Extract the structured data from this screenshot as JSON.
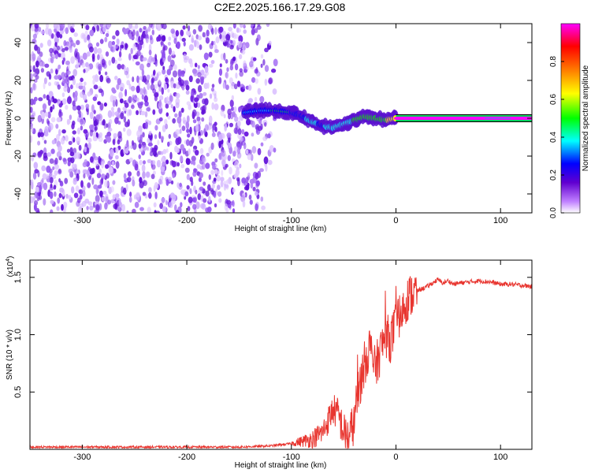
{
  "title": "C2E2.2025.166.17.29.G08",
  "chart_data": [
    {
      "type": "heatmap",
      "name": "spectrogram",
      "xlabel": "Height of straight line (km)",
      "ylabel": "Frequency (Hz)",
      "xlim": [
        -350,
        130
      ],
      "ylim": [
        -50,
        50
      ],
      "xticks": [
        -300,
        -200,
        -100,
        0,
        100
      ],
      "xtick_labels": [
        "-300",
        "-200",
        "-100",
        "0",
        "100"
      ],
      "yticks": [
        -40,
        -20,
        0,
        20,
        40
      ],
      "ytick_labels": [
        "-40",
        "-20",
        "0",
        "20",
        "40"
      ],
      "colorbar": {
        "label": "Normalized spectral amplitude",
        "range": [
          0,
          1
        ],
        "ticks": [
          0.0,
          0.2,
          0.4,
          0.6,
          0.8
        ],
        "tick_labels": [
          "0.0",
          "0.2",
          "0.4",
          "0.6",
          "0.8"
        ],
        "colors": [
          "#ffffff",
          "#c080ff",
          "#6000d0",
          "#0000ff",
          "#00ffff",
          "#00ff00",
          "#ffff00",
          "#ff8000",
          "#ff0000",
          "#ff00ff"
        ]
      },
      "regions": [
        {
          "kind": "noise",
          "x_range": [
            -350,
            -115
          ],
          "description_amplitude": 0.1
        },
        {
          "kind": "signal",
          "x": [
            -145,
            -130,
            -115,
            -100,
            -90,
            -80,
            -70,
            -60,
            -50,
            -40,
            -30,
            -20,
            -10,
            0
          ],
          "freq": [
            3,
            4,
            4,
            3,
            1,
            -2,
            -4,
            -5,
            -3,
            -1,
            1,
            0,
            -1,
            0
          ],
          "amplitude": [
            0.3,
            0.35,
            0.4,
            0.4,
            0.45,
            0.5,
            0.45,
            0.55,
            0.6,
            0.7,
            0.8,
            0.85,
            0.9,
            0.95
          ]
        },
        {
          "kind": "line",
          "x_range": [
            0,
            130
          ],
          "freq": 0,
          "amplitude": 0.95
        }
      ]
    },
    {
      "type": "line",
      "name": "snr",
      "xlabel": "Height of straight line (km)",
      "ylabel": "SNR (10 * v/v)",
      "scale_label": "(x10",
      "scale_exp": "4",
      "scale_label_close": ")",
      "xlim": [
        -350,
        130
      ],
      "ylim": [
        0,
        1.65
      ],
      "xticks": [
        -300,
        -200,
        -100,
        0,
        100
      ],
      "xtick_labels": [
        "-300",
        "-200",
        "-100",
        "0",
        "100"
      ],
      "yticks": [
        0.5,
        1.0,
        1.5
      ],
      "ytick_labels": [
        "0.5",
        "1.0",
        "1.5"
      ],
      "color": "#e8352f",
      "series": [
        {
          "x": [
            -350,
            -300,
            -250,
            -200,
            -150,
            -120,
            -100,
            -90,
            -80,
            -70,
            -65,
            -60,
            -55,
            -50,
            -45,
            -40,
            -35,
            -30,
            -25,
            -20,
            -15,
            -10,
            -5,
            0,
            5,
            10,
            15,
            20,
            30,
            40,
            45,
            50,
            55,
            60,
            70,
            80,
            90,
            100,
            110,
            120,
            130
          ],
          "y": [
            0.02,
            0.02,
            0.02,
            0.02,
            0.02,
            0.03,
            0.05,
            0.07,
            0.09,
            0.15,
            0.25,
            0.35,
            0.3,
            0.15,
            0.1,
            0.25,
            0.55,
            0.75,
            0.9,
            0.7,
            0.85,
            1.0,
            0.95,
            1.1,
            1.2,
            1.3,
            1.35,
            1.38,
            1.42,
            1.48,
            1.45,
            1.47,
            1.44,
            1.45,
            1.46,
            1.47,
            1.46,
            1.44,
            1.44,
            1.43,
            1.42
          ]
        }
      ]
    }
  ]
}
